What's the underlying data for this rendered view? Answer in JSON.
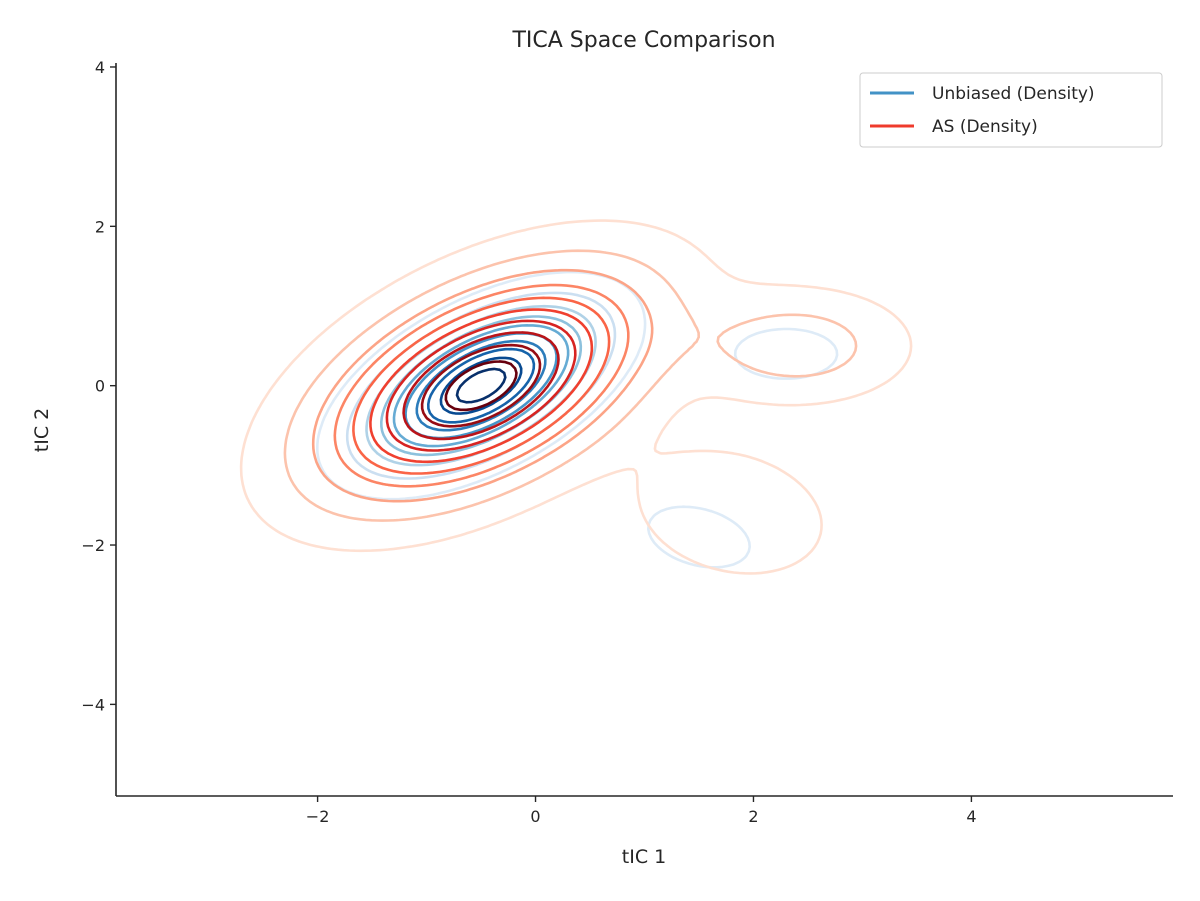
{
  "chart_data": {
    "type": "contour",
    "title": "TICA Space Comparison",
    "xlabel": "tIC 1",
    "ylabel": "tIC 2",
    "xlim": [
      -3.85,
      5.85
    ],
    "ylim": [
      -5.15,
      4.05
    ],
    "xticks": [
      -2,
      0,
      2,
      4
    ],
    "yticks": [
      -4,
      -2,
      0,
      2,
      4
    ],
    "xtick_labels": [
      "−2",
      "0",
      "2",
      "4"
    ],
    "ytick_labels": [
      "−4",
      "−2",
      "0",
      "2",
      "4"
    ],
    "grid": false,
    "legend_position": "upper right",
    "contour_levels": 10,
    "series": [
      {
        "name": "Unbiased (Density)",
        "color": "#4292c6",
        "colormap": [
          "#deebf7",
          "#c6dbef",
          "#9ecae1",
          "#6baed6",
          "#4292c6",
          "#2171b5",
          "#08519c",
          "#08306b"
        ],
        "components": [
          {
            "weight": 1.0,
            "mean": [
              -0.5,
              0.0
            ],
            "sd": [
              0.58,
              0.55
            ],
            "rho": 0.55
          },
          {
            "weight": 0.06,
            "mean": [
              2.3,
              0.4
            ],
            "sd": [
              0.45,
              0.3
            ],
            "rho": 0.0
          },
          {
            "weight": 0.05,
            "mean": [
              1.5,
              -1.9
            ],
            "sd": [
              0.55,
              0.45
            ],
            "rho": -0.3
          }
        ]
      },
      {
        "name": "AS (Density)",
        "color": "#ef3b2c",
        "colormap": [
          "#fee0d2",
          "#fcbba1",
          "#fc9272",
          "#fb6a4a",
          "#ef3b2c",
          "#cb181d",
          "#a50f15",
          "#67000d"
        ],
        "components": [
          {
            "weight": 1.0,
            "mean": [
              -0.5,
              0.0
            ],
            "sd": [
              0.85,
              0.8
            ],
            "rho": 0.5
          },
          {
            "weight": 0.16,
            "mean": [
              2.4,
              0.5
            ],
            "sd": [
              0.6,
              0.42
            ],
            "rho": 0.0
          },
          {
            "weight": 0.09,
            "mean": [
              1.8,
              -1.6
            ],
            "sd": [
              0.6,
              0.55
            ],
            "rho": -0.2
          }
        ]
      }
    ]
  }
}
